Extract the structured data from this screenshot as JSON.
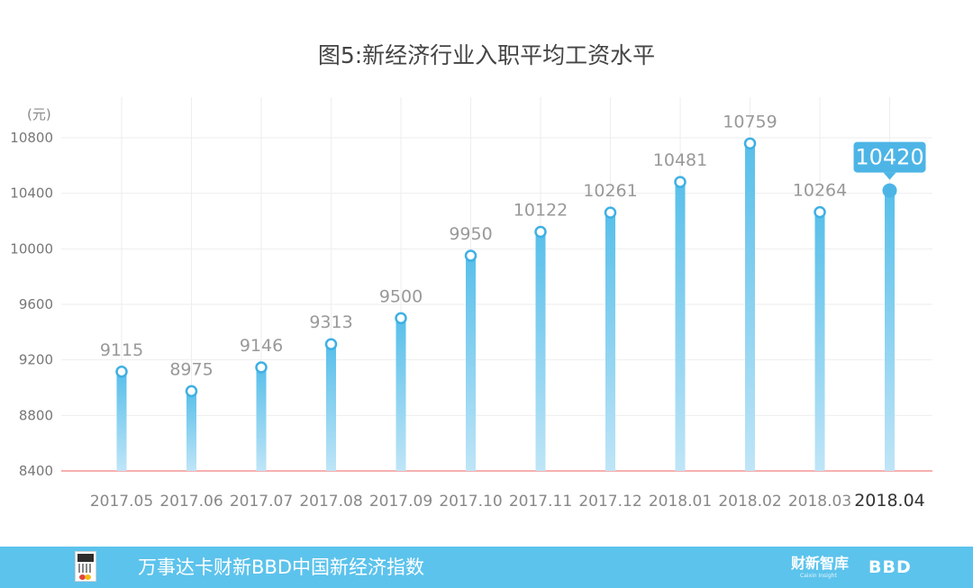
{
  "chart_data": {
    "type": "bar",
    "title": "图5:新经济行业入职平均工资水平",
    "ylabel": "(元)",
    "xlabel": "",
    "categories": [
      "2017.05",
      "2017.06",
      "2017.07",
      "2017.08",
      "2017.09",
      "2017.10",
      "2017.11",
      "2017.12",
      "2018.01",
      "2018.02",
      "2018.03",
      "2018.04"
    ],
    "values": [
      9115,
      8975,
      9146,
      9313,
      9500,
      9950,
      10122,
      10261,
      10481,
      10759,
      10264,
      10420
    ],
    "ylim": [
      8400,
      10800
    ],
    "yticks": [
      8400,
      8800,
      9200,
      9600,
      10000,
      10400,
      10800
    ],
    "highlight_index": 11,
    "grid": true,
    "colors": {
      "bar_top": "#58bfea",
      "bar_bottom": "#bfe5f7",
      "baseline": "#f08080",
      "grid": "#eeeeee",
      "label": "#999999",
      "highlight_label_bg": "#4db5e6"
    }
  },
  "footer": {
    "text": "万事达卡财新BBD中国新经济指数",
    "brand_1": "财新智库",
    "brand_1_sub": "Caixin Insight",
    "brand_2": "BBD",
    "background": "#5cc3ec"
  }
}
